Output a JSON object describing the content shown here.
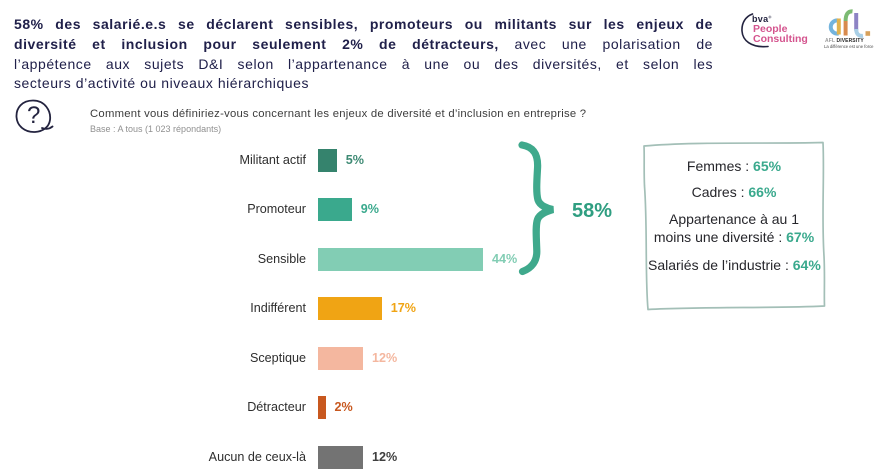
{
  "headline": {
    "lines": [
      {
        "bold": "58% des salarié.e.s se déclarent sensibles, promoteurs ou militants sur les enjeux de",
        "regular": ""
      },
      {
        "bold": "diversité et inclusion pour seulement 2% de détracteurs,",
        "regular": " avec une polarisation de"
      },
      {
        "bold": "",
        "regular": "l’appétence aux sujets D&I selon l’appartenance à une ou des diversités, et selon les"
      },
      {
        "bold": "",
        "regular": "secteurs d’activité ou niveaux hiérarchiques"
      }
    ]
  },
  "logos": {
    "bva": {
      "name": "bva",
      "mark": "®",
      "line1": "People",
      "line2": "Consulting",
      "accent_color": "#d4548e",
      "dark_color": "#23233f"
    },
    "afl": {
      "letters": "afl.",
      "name_grey": "AFL",
      "name_dark": "DIVERSITY",
      "tagline": "La différence est une force"
    }
  },
  "question": {
    "icon": "question-mark-icon",
    "text": "Comment vous définiriez-vous concernant les enjeux de diversité et d’inclusion en entreprise ?",
    "base": "Base : A tous (1 023 répondants)"
  },
  "chart_data": {
    "type": "bar",
    "orientation": "horizontal",
    "title": "",
    "xlabel": "",
    "ylabel": "",
    "xlim": [
      0,
      100
    ],
    "unit": "%",
    "grid": false,
    "categories": [
      "Militant actif",
      "Promoteur",
      "Sensible",
      "Indifférent",
      "Sceptique",
      "Détracteur",
      "Aucun de ceux-là"
    ],
    "values": [
      5,
      9,
      44,
      17,
      12,
      2,
      12
    ],
    "value_labels": [
      "5%",
      "9%",
      "44%",
      "17%",
      "12%",
      "2%",
      "12%"
    ],
    "bar_colors": [
      "#35836d",
      "#3aa98d",
      "#82cdb4",
      "#f0a414",
      "#f4b79f",
      "#c8581f",
      "#737373"
    ],
    "value_label_colors": [
      "#3e8a74",
      "#3aa98d",
      "#82cdb4",
      "#f0a414",
      "#f4b79f",
      "#c8581f",
      "#3f3f3f"
    ],
    "group_annotation": {
      "label": "58%",
      "covers": [
        "Militant actif",
        "Promoteur",
        "Sensible"
      ],
      "color": "#3fa98c"
    }
  },
  "annotation_box": {
    "border_color": "#a3bfb7",
    "rows": [
      {
        "label": "Femmes :",
        "value": "65%"
      },
      {
        "label": "Cadres :",
        "value": "66%"
      },
      {
        "label_line1": "Appartenance à au 1",
        "label_line2": "moins une diversité :",
        "value": "67%"
      },
      {
        "label": "Salariés de l’industrie :",
        "value": "64%"
      }
    ]
  }
}
